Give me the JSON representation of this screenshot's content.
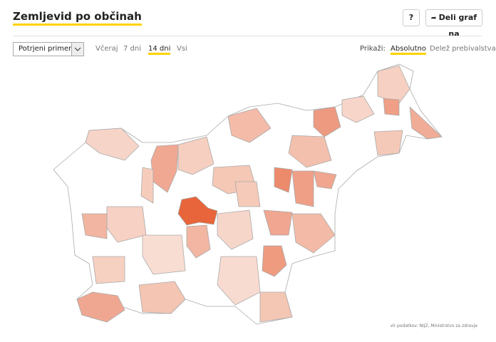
{
  "header": {
    "title": "Zemljevid po občinah",
    "help_button": "?",
    "share_button": "Deli graf na"
  },
  "controls": {
    "dropdown": "Potrjeni primeri",
    "periods": [
      "Včeraj",
      "7 dni",
      "14 dni",
      "Vsi"
    ],
    "show_label": "Prikaži:",
    "modes": [
      "Absolutno",
      "Delež prebivalstva"
    ]
  },
  "footer": {
    "source": "vir podatkov: NIJZ, Ministrstvo za zdravje"
  }
}
